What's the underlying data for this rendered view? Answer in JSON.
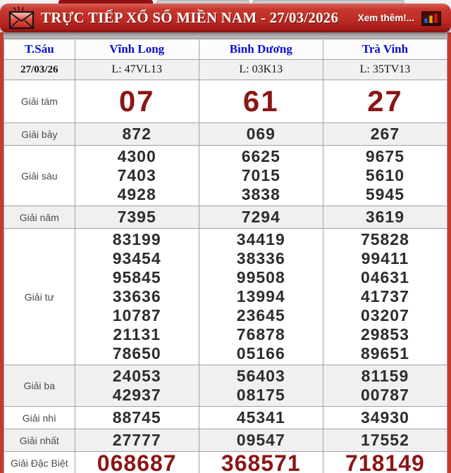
{
  "header": {
    "title": "TRỰC TIẾP XỔ SỐ MIỀN NAM - 27/03/2026",
    "more_label": "Xem thêm!...",
    "icons": {
      "envelope": "red-envelope-mail-icon",
      "chart": "bar-chart-icon"
    },
    "colors": {
      "bar_red": "#bf2c24",
      "dark_tab_red": "#8e1212",
      "chart_bar_colors": [
        "#2f62c8",
        "#eca50f",
        "#d21d14"
      ]
    }
  },
  "table": {
    "columns": [
      "T.Sáu",
      "Vĩnh Long",
      "Bình Dương",
      "Trà Vinh"
    ],
    "date_row": {
      "date": "27/03/26",
      "codes": [
        "L: 47VL13",
        "L: 03K13",
        "L: 35TV13"
      ]
    },
    "prizes": [
      {
        "label": "Giải tám",
        "size": "xl",
        "values": [
          [
            "07"
          ],
          [
            "61"
          ],
          [
            "27"
          ]
        ]
      },
      {
        "label": "Giải bảy",
        "size": "md",
        "values": [
          [
            "872"
          ],
          [
            "069"
          ],
          [
            "267"
          ]
        ]
      },
      {
        "label": "Giải sáu",
        "size": "md",
        "values": [
          [
            "4300",
            "7403",
            "4928"
          ],
          [
            "6625",
            "7015",
            "3838"
          ],
          [
            "9675",
            "5610",
            "5945"
          ]
        ]
      },
      {
        "label": "Giải năm",
        "size": "md",
        "values": [
          [
            "7395"
          ],
          [
            "7294"
          ],
          [
            "3619"
          ]
        ]
      },
      {
        "label": "Giải tư",
        "size": "md",
        "values": [
          [
            "83199",
            "93454",
            "95845",
            "33636",
            "10787",
            "21131",
            "78650"
          ],
          [
            "34419",
            "38336",
            "99508",
            "13994",
            "23645",
            "76878",
            "05166"
          ],
          [
            "75828",
            "99411",
            "04631",
            "41737",
            "03207",
            "29853",
            "89651"
          ]
        ]
      },
      {
        "label": "Giải ba",
        "size": "md",
        "values": [
          [
            "24053",
            "42937"
          ],
          [
            "56403",
            "08175"
          ],
          [
            "81159",
            "00787"
          ]
        ]
      },
      {
        "label": "Giải nhì",
        "size": "md",
        "values": [
          [
            "88745"
          ],
          [
            "45341"
          ],
          [
            "34930"
          ]
        ]
      },
      {
        "label": "Giải nhất",
        "size": "md",
        "values": [
          [
            "27777"
          ],
          [
            "09547"
          ],
          [
            "17552"
          ]
        ]
      },
      {
        "label": "Giải Đặc Biệt",
        "size": "lg",
        "values": [
          [
            "068687"
          ],
          [
            "368571"
          ],
          [
            "718149"
          ]
        ]
      }
    ],
    "colors": {
      "highlight_number_red": "#8b1616",
      "number_dark": "#2d2d2d",
      "header_blue": "#0d0dd0",
      "shaded_row": "#f0f0f0"
    }
  }
}
